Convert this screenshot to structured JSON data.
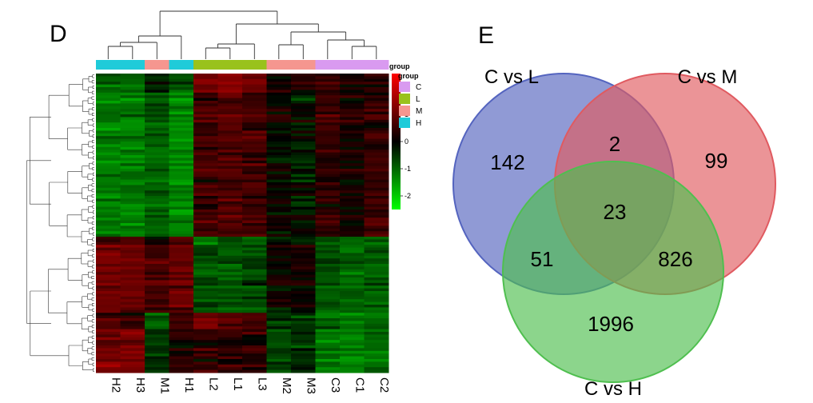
{
  "panel_d_label": "D",
  "panel_e_label": "E",
  "chart_data": [
    {
      "type": "heatmap",
      "columns": [
        "H2",
        "H3",
        "M1",
        "H1",
        "L2",
        "L1",
        "L3",
        "M2",
        "M3",
        "C3",
        "C1",
        "C2"
      ],
      "column_groups": [
        "H",
        "H",
        "M",
        "H",
        "L",
        "L",
        "L",
        "M",
        "M",
        "C",
        "C",
        "C"
      ],
      "annotation_title": "group",
      "groups": [
        {
          "name": "C",
          "color": "#d99af0"
        },
        {
          "name": "L",
          "color": "#99c21c"
        },
        {
          "name": "M",
          "color": "#f5968f"
        },
        {
          "name": "H",
          "color": "#1fcbd9"
        }
      ],
      "color_scale": {
        "range": [
          -2.5,
          2.5
        ],
        "ticks": [
          "2",
          "1",
          "0",
          "-1",
          "-2"
        ],
        "low_color": "#00ff00",
        "mid_color": "#000000",
        "high_color": "#ff0000"
      },
      "row_dendrogram": true,
      "column_dendrogram": true
    },
    {
      "type": "venn",
      "sets": [
        {
          "name": "C vs L",
          "color": "#5464bf"
        },
        {
          "name": "C vs M",
          "color": "#e05a60"
        },
        {
          "name": "C vs H",
          "color": "#4fbf4f"
        }
      ],
      "regions": [
        {
          "sets": [
            "C vs L"
          ],
          "value": 142
        },
        {
          "sets": [
            "C vs M"
          ],
          "value": 99
        },
        {
          "sets": [
            "C vs H"
          ],
          "value": 1996
        },
        {
          "sets": [
            "C vs L",
            "C vs M"
          ],
          "value": 2
        },
        {
          "sets": [
            "C vs L",
            "C vs H"
          ],
          "value": 51
        },
        {
          "sets": [
            "C vs M",
            "C vs H"
          ],
          "value": 826
        },
        {
          "sets": [
            "C vs L",
            "C vs M",
            "C vs H"
          ],
          "value": 23
        }
      ]
    }
  ]
}
